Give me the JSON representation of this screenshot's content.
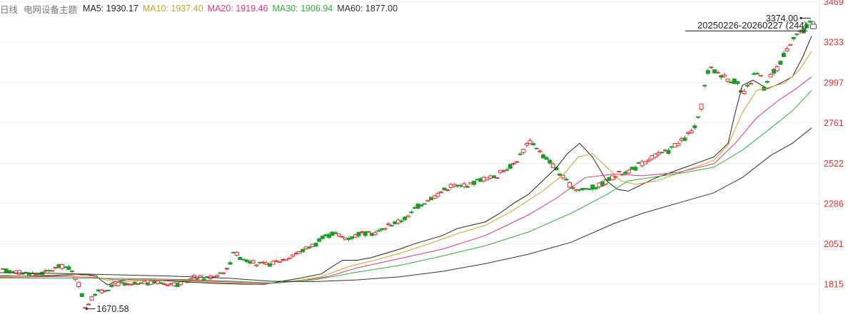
{
  "legend": {
    "period": "日线",
    "name": "电网设备主题",
    "ma5": {
      "label": "MA5: 1930.17",
      "color": "#222222"
    },
    "ma10": {
      "label": "MA10: 1937.40",
      "color": "#c9a227"
    },
    "ma20": {
      "label": "MA20: 1919.46",
      "color": "#e0347a"
    },
    "ma30": {
      "label": "MA30: 1906.94",
      "color": "#2fae3b"
    },
    "ma60": {
      "label": "MA60: 1877.00",
      "color": "#333333"
    }
  },
  "range_label": "20250226-20260227 (244)",
  "colors": {
    "up": "#e03030",
    "down": "#1e9a28",
    "axis_text": "#e03030",
    "grid": "#ededed"
  },
  "chart_data": {
    "type": "candlestick",
    "y_ticks": [
      "3469",
      "3233",
      "2997",
      "2761",
      "2522",
      "2286",
      "2051",
      "1815"
    ],
    "ylim": [
      1640,
      3480
    ],
    "max_label": "3374.00",
    "min_label": "1670.58",
    "grid": true,
    "anchors": [
      [
        0,
        1895
      ],
      [
        10,
        1890
      ],
      [
        20,
        1880
      ],
      [
        30,
        1875
      ],
      [
        40,
        1885
      ],
      [
        45,
        1900
      ],
      [
        52,
        1920
      ],
      [
        58,
        1915
      ],
      [
        62,
        1900
      ],
      [
        66,
        1850
      ],
      [
        70,
        1800
      ],
      [
        75,
        1680
      ],
      [
        80,
        1720
      ],
      [
        85,
        1770
      ],
      [
        90,
        1770
      ],
      [
        95,
        1790
      ],
      [
        100,
        1800
      ],
      [
        104,
        1815
      ],
      [
        108,
        1820
      ],
      [
        112,
        1810
      ],
      [
        116,
        1805
      ],
      [
        120,
        1815
      ],
      [
        124,
        1810
      ],
      [
        128,
        1820
      ],
      [
        132,
        1820
      ],
      [
        136,
        1820
      ],
      [
        140,
        1830
      ],
      [
        145,
        1820
      ],
      [
        150,
        1820
      ],
      [
        155,
        1820
      ],
      [
        160,
        1810
      ],
      [
        165,
        1825
      ],
      [
        170,
        1840
      ],
      [
        175,
        1860
      ],
      [
        180,
        1855
      ],
      [
        185,
        1850
      ],
      [
        190,
        1860
      ],
      [
        195,
        1870
      ],
      [
        200,
        1890
      ],
      [
        205,
        1900
      ],
      [
        210,
        2010
      ],
      [
        215,
        1975
      ],
      [
        220,
        1960
      ],
      [
        225,
        1950
      ],
      [
        230,
        1935
      ],
      [
        240,
        1930
      ],
      [
        245,
        1935
      ],
      [
        250,
        1950
      ],
      [
        255,
        1960
      ],
      [
        260,
        1970
      ],
      [
        265,
        1995
      ],
      [
        270,
        2000
      ],
      [
        275,
        2020
      ],
      [
        280,
        2040
      ],
      [
        285,
        2050
      ],
      [
        290,
        2080
      ],
      [
        295,
        2095
      ],
      [
        300,
        2110
      ],
      [
        305,
        2105
      ],
      [
        310,
        2090
      ],
      [
        315,
        2085
      ],
      [
        320,
        2095
      ],
      [
        325,
        2115
      ],
      [
        330,
        2110
      ],
      [
        335,
        2110
      ],
      [
        340,
        2120
      ],
      [
        345,
        2130
      ],
      [
        350,
        2160
      ],
      [
        355,
        2170
      ],
      [
        360,
        2180
      ],
      [
        365,
        2200
      ],
      [
        370,
        2210
      ],
      [
        375,
        2260
      ],
      [
        380,
        2280
      ],
      [
        385,
        2300
      ],
      [
        390,
        2320
      ],
      [
        395,
        2340
      ],
      [
        400,
        2360
      ],
      [
        405,
        2380
      ],
      [
        410,
        2400
      ],
      [
        415,
        2380
      ],
      [
        420,
        2400
      ],
      [
        425,
        2395
      ],
      [
        430,
        2415
      ],
      [
        435,
        2430
      ],
      [
        440,
        2435
      ],
      [
        445,
        2440
      ],
      [
        450,
        2450
      ],
      [
        455,
        2480
      ],
      [
        460,
        2500
      ],
      [
        465,
        2520
      ],
      [
        470,
        2560
      ],
      [
        475,
        2610
      ],
      [
        480,
        2650
      ],
      [
        485,
        2630
      ],
      [
        490,
        2580
      ],
      [
        495,
        2550
      ],
      [
        500,
        2520
      ],
      [
        505,
        2480
      ],
      [
        510,
        2440
      ],
      [
        515,
        2400
      ],
      [
        520,
        2380
      ],
      [
        525,
        2370
      ],
      [
        530,
        2370
      ],
      [
        535,
        2380
      ],
      [
        540,
        2385
      ],
      [
        545,
        2400
      ],
      [
        550,
        2420
      ],
      [
        555,
        2440
      ],
      [
        560,
        2460
      ],
      [
        565,
        2470
      ],
      [
        570,
        2480
      ],
      [
        575,
        2490
      ],
      [
        580,
        2520
      ],
      [
        585,
        2525
      ],
      [
        590,
        2560
      ],
      [
        595,
        2570
      ],
      [
        600,
        2580
      ],
      [
        605,
        2590
      ],
      [
        610,
        2620
      ],
      [
        615,
        2640
      ],
      [
        620,
        2660
      ],
      [
        625,
        2700
      ],
      [
        630,
        2730
      ],
      [
        633,
        2780
      ],
      [
        637,
        2880
      ],
      [
        640,
        3020
      ],
      [
        643,
        3080
      ],
      [
        646,
        3070
      ],
      [
        650,
        3060
      ],
      [
        655,
        3040
      ],
      [
        660,
        3020
      ],
      [
        665,
        3010
      ],
      [
        670,
        2980
      ],
      [
        673,
        2920
      ],
      [
        676,
        2940
      ],
      [
        680,
        2990
      ],
      [
        685,
        3050
      ],
      [
        690,
        3030
      ],
      [
        693,
        2960
      ],
      [
        696,
        2990
      ],
      [
        700,
        3050
      ],
      [
        705,
        3080
      ],
      [
        708,
        3120
      ],
      [
        712,
        3170
      ],
      [
        716,
        3220
      ],
      [
        720,
        3270
      ],
      [
        725,
        3290
      ],
      [
        730,
        3300
      ],
      [
        735,
        3350
      ]
    ],
    "ma_series": [
      {
        "key": "ma5",
        "color": "#222222",
        "pts": [
          [
            0,
            1865
          ],
          [
            60,
            1862
          ],
          [
            120,
            1872
          ],
          [
            135,
            1864
          ],
          [
            141,
            1840
          ],
          [
            151,
            1810
          ],
          [
            160,
            1828
          ],
          [
            170,
            1835
          ],
          [
            180,
            1842
          ],
          [
            220,
            1838
          ],
          [
            260,
            1828
          ],
          [
            300,
            1820
          ],
          [
            340,
            1815
          ],
          [
            370,
            1814
          ],
          [
            390,
            1828
          ],
          [
            420,
            1850
          ],
          [
            450,
            1875
          ],
          [
            470,
            1930
          ],
          [
            480,
            1955
          ],
          [
            500,
            1955
          ],
          [
            520,
            1970
          ],
          [
            540,
            1995
          ],
          [
            560,
            2020
          ],
          [
            580,
            2050
          ],
          [
            600,
            2075
          ],
          [
            620,
            2100
          ],
          [
            640,
            2140
          ],
          [
            660,
            2160
          ],
          [
            680,
            2180
          ],
          [
            700,
            2230
          ],
          [
            720,
            2290
          ],
          [
            740,
            2340
          ],
          [
            760,
            2420
          ],
          [
            780,
            2500
          ],
          [
            795,
            2580
          ],
          [
            812,
            2640
          ],
          [
            830,
            2560
          ],
          [
            850,
            2420
          ],
          [
            865,
            2370
          ],
          [
            880,
            2360
          ],
          [
            900,
            2400
          ],
          [
            920,
            2440
          ],
          [
            940,
            2470
          ],
          [
            960,
            2500
          ],
          [
            980,
            2530
          ],
          [
            1000,
            2560
          ],
          [
            1020,
            2640
          ],
          [
            1030,
            2820
          ],
          [
            1040,
            2980
          ],
          [
            1055,
            3010
          ],
          [
            1075,
            2960
          ],
          [
            1090,
            2985
          ],
          [
            1110,
            3030
          ],
          [
            1125,
            3150
          ],
          [
            1137,
            3268
          ]
        ]
      },
      {
        "key": "ma10",
        "color": "#c9a227",
        "pts": [
          [
            0,
            1860
          ],
          [
            60,
            1866
          ],
          [
            100,
            1872
          ],
          [
            130,
            1862
          ],
          [
            150,
            1838
          ],
          [
            170,
            1828
          ],
          [
            200,
            1836
          ],
          [
            240,
            1838
          ],
          [
            280,
            1830
          ],
          [
            320,
            1822
          ],
          [
            360,
            1816
          ],
          [
            390,
            1822
          ],
          [
            420,
            1838
          ],
          [
            450,
            1858
          ],
          [
            470,
            1890
          ],
          [
            490,
            1920
          ],
          [
            520,
            1950
          ],
          [
            560,
            1995
          ],
          [
            600,
            2050
          ],
          [
            640,
            2110
          ],
          [
            680,
            2160
          ],
          [
            720,
            2250
          ],
          [
            760,
            2360
          ],
          [
            790,
            2460
          ],
          [
            810,
            2560
          ],
          [
            830,
            2580
          ],
          [
            850,
            2500
          ],
          [
            870,
            2420
          ],
          [
            890,
            2400
          ],
          [
            920,
            2420
          ],
          [
            960,
            2480
          ],
          [
            1000,
            2540
          ],
          [
            1020,
            2630
          ],
          [
            1040,
            2820
          ],
          [
            1060,
            2950
          ],
          [
            1080,
            2970
          ],
          [
            1100,
            2995
          ],
          [
            1120,
            3070
          ],
          [
            1137,
            3180
          ]
        ]
      },
      {
        "key": "ma20",
        "color": "#e0347a",
        "pts": [
          [
            0,
            1855
          ],
          [
            80,
            1860
          ],
          [
            130,
            1855
          ],
          [
            160,
            1842
          ],
          [
            200,
            1840
          ],
          [
            260,
            1838
          ],
          [
            320,
            1828
          ],
          [
            370,
            1818
          ],
          [
            420,
            1832
          ],
          [
            460,
            1860
          ],
          [
            500,
            1910
          ],
          [
            560,
            1965
          ],
          [
            620,
            2020
          ],
          [
            680,
            2100
          ],
          [
            740,
            2220
          ],
          [
            780,
            2320
          ],
          [
            820,
            2440
          ],
          [
            860,
            2460
          ],
          [
            900,
            2450
          ],
          [
            950,
            2470
          ],
          [
            1000,
            2520
          ],
          [
            1030,
            2640
          ],
          [
            1060,
            2790
          ],
          [
            1090,
            2890
          ],
          [
            1115,
            2960
          ],
          [
            1137,
            3030
          ]
        ]
      },
      {
        "key": "ma30",
        "color": "#2fae3b",
        "pts": [
          [
            0,
            1852
          ],
          [
            100,
            1850
          ],
          [
            180,
            1848
          ],
          [
            260,
            1842
          ],
          [
            330,
            1832
          ],
          [
            380,
            1822
          ],
          [
            440,
            1840
          ],
          [
            500,
            1885
          ],
          [
            560,
            1925
          ],
          [
            620,
            1980
          ],
          [
            680,
            2040
          ],
          [
            740,
            2120
          ],
          [
            800,
            2230
          ],
          [
            850,
            2340
          ],
          [
            880,
            2420
          ],
          [
            920,
            2445
          ],
          [
            960,
            2470
          ],
          [
            1000,
            2500
          ],
          [
            1040,
            2600
          ],
          [
            1080,
            2730
          ],
          [
            1110,
            2830
          ],
          [
            1137,
            2950
          ]
        ]
      },
      {
        "key": "ma60",
        "color": "#333333",
        "pts": [
          [
            0,
            1882
          ],
          [
            80,
            1878
          ],
          [
            160,
            1870
          ],
          [
            240,
            1862
          ],
          [
            320,
            1850
          ],
          [
            380,
            1832
          ],
          [
            440,
            1830
          ],
          [
            500,
            1840
          ],
          [
            560,
            1858
          ],
          [
            620,
            1890
          ],
          [
            680,
            1935
          ],
          [
            740,
            1990
          ],
          [
            800,
            2060
          ],
          [
            860,
            2170
          ],
          [
            900,
            2230
          ],
          [
            950,
            2290
          ],
          [
            1000,
            2350
          ],
          [
            1040,
            2440
          ],
          [
            1080,
            2570
          ],
          [
            1110,
            2640
          ],
          [
            1137,
            2730
          ]
        ]
      }
    ]
  }
}
